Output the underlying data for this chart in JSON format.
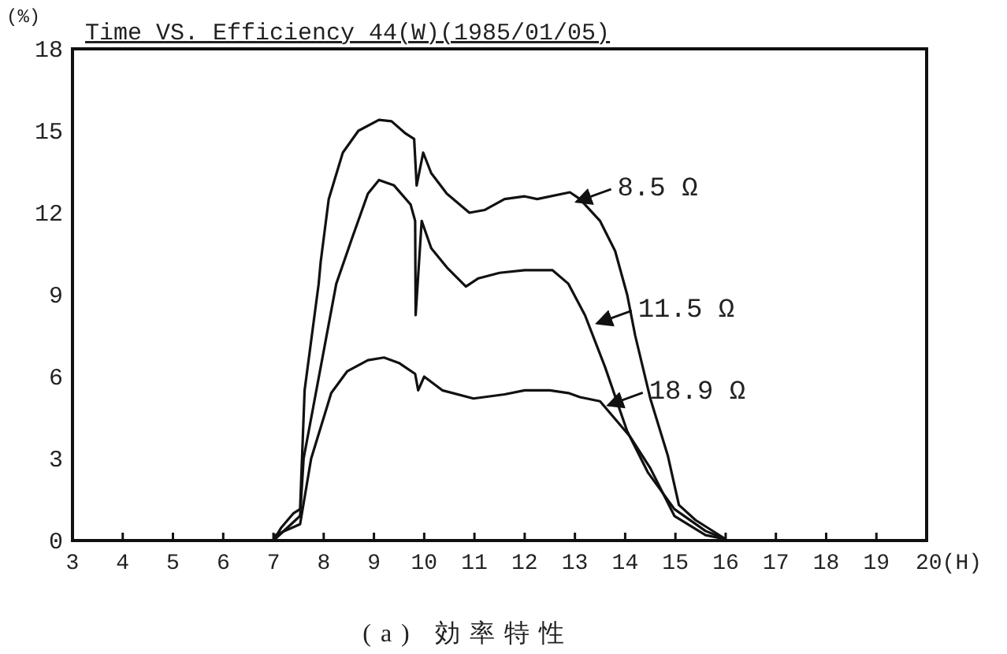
{
  "chart_data": {
    "type": "line",
    "title": "Time VS. Efficiency 44(W)(1985/01/05)",
    "ylabel": "(%)",
    "xlim": [
      3,
      20
    ],
    "ylim": [
      0,
      18
    ],
    "xticks": [
      3,
      4,
      5,
      6,
      7,
      8,
      9,
      10,
      11,
      12,
      13,
      14,
      15,
      16,
      17,
      18,
      19,
      {
        "value": 20,
        "label": "20(H)"
      }
    ],
    "yticks": [
      0,
      3,
      6,
      9,
      12,
      15,
      18
    ],
    "series": [
      {
        "color": "#111111",
        "x": [
          7.0,
          7.15,
          7.4,
          7.53,
          7.62,
          7.9,
          7.94,
          8.1,
          8.38,
          8.69,
          9.1,
          9.35,
          9.63,
          9.8,
          9.85,
          9.98,
          10.14,
          10.45,
          10.9,
          11.2,
          11.6,
          12.0,
          12.25,
          12.9,
          13.1,
          13.5,
          13.8,
          14.04,
          14.2,
          14.5,
          14.85,
          15.07,
          15.4,
          16.0
        ],
        "values": [
          0,
          0.46,
          1.0,
          1.15,
          5.5,
          9.4,
          10.2,
          12.5,
          14.2,
          15.0,
          15.4,
          15.35,
          14.9,
          14.7,
          13.0,
          14.2,
          13.45,
          12.7,
          12.0,
          12.1,
          12.5,
          12.6,
          12.5,
          12.75,
          12.5,
          11.7,
          10.6,
          9.0,
          7.5,
          5.2,
          3.1,
          1.3,
          0.75,
          0.05
        ]
      },
      {
        "color": "#111111",
        "x": [
          7.0,
          7.53,
          7.6,
          8.25,
          8.57,
          8.88,
          9.1,
          9.4,
          9.73,
          9.82,
          9.83,
          9.95,
          10.14,
          10.45,
          10.83,
          11.08,
          11.5,
          12.0,
          12.55,
          12.87,
          13.2,
          13.6,
          14.04,
          14.45,
          14.98,
          15.6,
          16.0
        ],
        "values": [
          0,
          0.9,
          3.0,
          9.4,
          11.1,
          12.7,
          13.2,
          13.0,
          12.3,
          11.7,
          8.25,
          11.7,
          10.7,
          10.0,
          9.3,
          9.6,
          9.8,
          9.9,
          9.9,
          9.4,
          8.25,
          6.35,
          4.0,
          2.5,
          1.15,
          0.35,
          0.05
        ]
      },
      {
        "color": "#111111",
        "x": [
          7.0,
          7.53,
          7.75,
          8.15,
          8.47,
          8.88,
          9.2,
          9.5,
          9.82,
          9.88,
          10.0,
          10.36,
          10.98,
          11.6,
          12.0,
          12.5,
          12.87,
          13.1,
          13.5,
          14.1,
          14.5,
          14.98,
          15.6,
          16.0
        ],
        "values": [
          0.17,
          0.6,
          3.0,
          5.4,
          6.2,
          6.6,
          6.7,
          6.5,
          6.1,
          5.5,
          6.0,
          5.5,
          5.2,
          5.35,
          5.5,
          5.5,
          5.4,
          5.25,
          5.1,
          3.8,
          2.65,
          0.9,
          0.2,
          0.05
        ]
      }
    ],
    "annotations": [
      {
        "text": "8.5 Ω",
        "x": 13.03,
        "y": 12.4
      },
      {
        "text": "11.5 Ω",
        "x": 13.44,
        "y": 7.95
      },
      {
        "text": "18.9 Ω",
        "x": 13.66,
        "y": 4.95
      },
      "(a) 効率特性"
    ]
  }
}
